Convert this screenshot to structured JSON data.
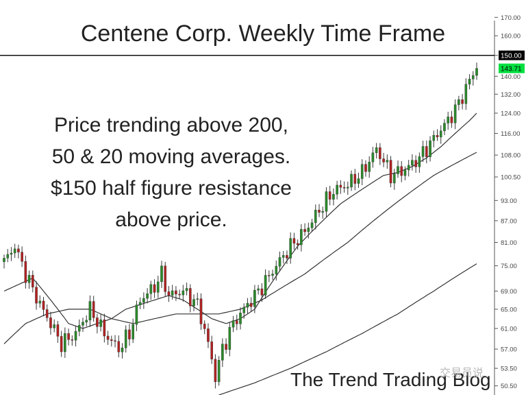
{
  "chart_data": {
    "type": "candlestick",
    "title": "Centene Corp. Weekly Time Frame",
    "annotation_lines": [
      "Price trending above 200,",
      "50 & 20 moving averages.",
      "$150 half figure resistance",
      "above price."
    ],
    "y_axis": {
      "scale": "log",
      "ticks": [
        "170.00",
        "160.00",
        "150.00",
        "140.00",
        "132.00",
        "124.00",
        "116.00",
        "108.00",
        "100.50",
        "93.00",
        "87.00",
        "81.00",
        "75.00",
        "69.00",
        "65.00",
        "61.00",
        "57.00",
        "53.50",
        "50.50"
      ],
      "tick_values": [
        170,
        160,
        150,
        140,
        132,
        124,
        116,
        108,
        100.5,
        93,
        87,
        81,
        75,
        69,
        65,
        61,
        57,
        53.5,
        50.5
      ],
      "range": [
        49,
        180
      ]
    },
    "resistance_level": 150,
    "resistance_label": "150.00",
    "last_price": 143.71,
    "last_price_label": "143.71",
    "close_anchors": [
      [
        0,
        76
      ],
      [
        3,
        80
      ],
      [
        6,
        73
      ],
      [
        10,
        66
      ],
      [
        13,
        62
      ],
      [
        16,
        58
      ],
      [
        20,
        60
      ],
      [
        24,
        65
      ],
      [
        28,
        60
      ],
      [
        32,
        57
      ],
      [
        35,
        60
      ],
      [
        38,
        67
      ],
      [
        42,
        70
      ],
      [
        44,
        73
      ],
      [
        46,
        68
      ],
      [
        50,
        69
      ],
      [
        54,
        66
      ],
      [
        57,
        58
      ],
      [
        59,
        52
      ],
      [
        61,
        57
      ],
      [
        64,
        62
      ],
      [
        68,
        66
      ],
      [
        72,
        70
      ],
      [
        76,
        75
      ],
      [
        80,
        80
      ],
      [
        84,
        84
      ],
      [
        88,
        90
      ],
      [
        92,
        96
      ],
      [
        96,
        98
      ],
      [
        100,
        102
      ],
      [
        104,
        110
      ],
      [
        106,
        106
      ],
      [
        108,
        101
      ],
      [
        112,
        103
      ],
      [
        116,
        107
      ],
      [
        120,
        114
      ],
      [
        124,
        121
      ],
      [
        127,
        128
      ],
      [
        130,
        138
      ],
      [
        132,
        144
      ]
    ],
    "ma_series": [
      {
        "name": "MA20",
        "anchors": [
          [
            0,
            69
          ],
          [
            8,
            72
          ],
          [
            14,
            66
          ],
          [
            18,
            62
          ],
          [
            22,
            61
          ],
          [
            26,
            62
          ],
          [
            30,
            63
          ],
          [
            34,
            65
          ],
          [
            38,
            66
          ],
          [
            42,
            67
          ],
          [
            46,
            68
          ],
          [
            50,
            67
          ],
          [
            54,
            65
          ],
          [
            58,
            63
          ],
          [
            62,
            62
          ],
          [
            66,
            63
          ],
          [
            70,
            65
          ],
          [
            74,
            70
          ],
          [
            78,
            75
          ],
          [
            82,
            80
          ],
          [
            86,
            84
          ],
          [
            90,
            88
          ],
          [
            94,
            92
          ],
          [
            98,
            95
          ],
          [
            102,
            98
          ],
          [
            106,
            101
          ],
          [
            110,
            102
          ],
          [
            114,
            104
          ],
          [
            118,
            107
          ],
          [
            122,
            111
          ],
          [
            126,
            116
          ],
          [
            130,
            121
          ],
          [
            132,
            124
          ]
        ]
      },
      {
        "name": "MA50",
        "anchors": [
          [
            0,
            58
          ],
          [
            6,
            62
          ],
          [
            12,
            64
          ],
          [
            18,
            65
          ],
          [
            24,
            65
          ],
          [
            30,
            63
          ],
          [
            36,
            62
          ],
          [
            42,
            63
          ],
          [
            48,
            64
          ],
          [
            54,
            64
          ],
          [
            60,
            64
          ],
          [
            66,
            65
          ],
          [
            72,
            67
          ],
          [
            78,
            70
          ],
          [
            84,
            73
          ],
          [
            90,
            77
          ],
          [
            96,
            81
          ],
          [
            102,
            86
          ],
          [
            108,
            91
          ],
          [
            114,
            96
          ],
          [
            120,
            101
          ],
          [
            126,
            105
          ],
          [
            132,
            109
          ]
        ]
      },
      {
        "name": "MA200",
        "anchors": [
          [
            60,
            49
          ],
          [
            70,
            51
          ],
          [
            80,
            53.5
          ],
          [
            90,
            56.5
          ],
          [
            100,
            60
          ],
          [
            110,
            64
          ],
          [
            120,
            69
          ],
          [
            132,
            75.5
          ]
        ]
      }
    ],
    "colors": {
      "up": "#2a8a2a",
      "down": "#b22222",
      "wick": "#333333",
      "ma": "#333333",
      "axis": "#555555",
      "highlight": "#00e040"
    }
  },
  "footer": "The Trend Trading Blog",
  "watermark": "交易员说"
}
